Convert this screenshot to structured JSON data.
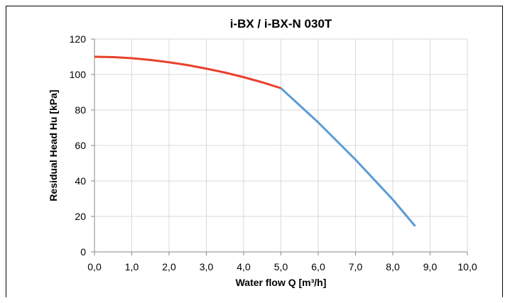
{
  "chart_data": {
    "type": "line",
    "title": "i-BX / i-BX-N 030T",
    "xlabel": "Water flow Q [m³/h]",
    "ylabel": "Residual Head Hu [kPa]",
    "xlim": [
      0,
      10
    ],
    "ylim": [
      0,
      120
    ],
    "x_ticks": [
      "0,0",
      "1,0",
      "2,0",
      "3,0",
      "4,0",
      "5,0",
      "6,0",
      "7,0",
      "8,0",
      "9,0",
      "10,0"
    ],
    "y_ticks": [
      "0",
      "20",
      "40",
      "60",
      "80",
      "100",
      "120"
    ],
    "grid": true,
    "legend": "none",
    "series": [
      {
        "color": "#e8412b",
        "x": [
          0.0,
          0.5,
          1.0,
          1.5,
          2.0,
          2.5,
          3.0,
          3.5,
          4.0,
          4.5,
          5.0
        ],
        "y": [
          110.0,
          109.8,
          109.2,
          108.2,
          106.9,
          105.3,
          103.3,
          101.1,
          98.5,
          95.6,
          92.3
        ]
      },
      {
        "color": "#5b9bd5",
        "x": [
          5.0,
          6.0,
          7.0,
          8.0,
          8.6
        ],
        "y": [
          92.3,
          73.0,
          52.0,
          29.5,
          14.5
        ]
      }
    ]
  }
}
